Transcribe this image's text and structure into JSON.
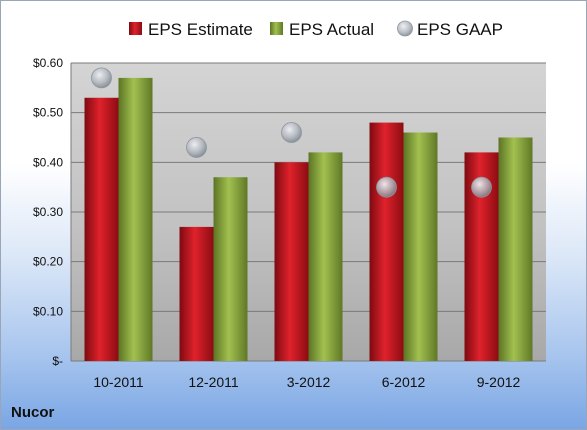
{
  "company": "Nucor",
  "chart_data": {
    "type": "bar",
    "categories": [
      "10-2011",
      "12-2011",
      "3-2012",
      "6-2012",
      "9-2012"
    ],
    "series": [
      {
        "name": "EPS Estimate",
        "kind": "bar",
        "color": "#c0121b",
        "values": [
          0.53,
          0.27,
          0.4,
          0.48,
          0.42
        ]
      },
      {
        "name": "EPS Actual",
        "kind": "bar",
        "color": "#8aa83c",
        "values": [
          0.57,
          0.37,
          0.42,
          0.46,
          0.45
        ]
      },
      {
        "name": "EPS GAAP",
        "kind": "marker",
        "color": "#b9bfc6",
        "values": [
          0.57,
          0.43,
          0.46,
          0.35,
          0.35
        ]
      }
    ],
    "ylim": [
      0,
      0.6
    ],
    "yticks": [
      0,
      0.1,
      0.2,
      0.3,
      0.4,
      0.5,
      0.6
    ],
    "ytick_labels": [
      "$-",
      "$0.10",
      "$0.20",
      "$0.30",
      "$0.40",
      "$0.50",
      "$0.60"
    ],
    "grid": true,
    "legend": "top"
  }
}
